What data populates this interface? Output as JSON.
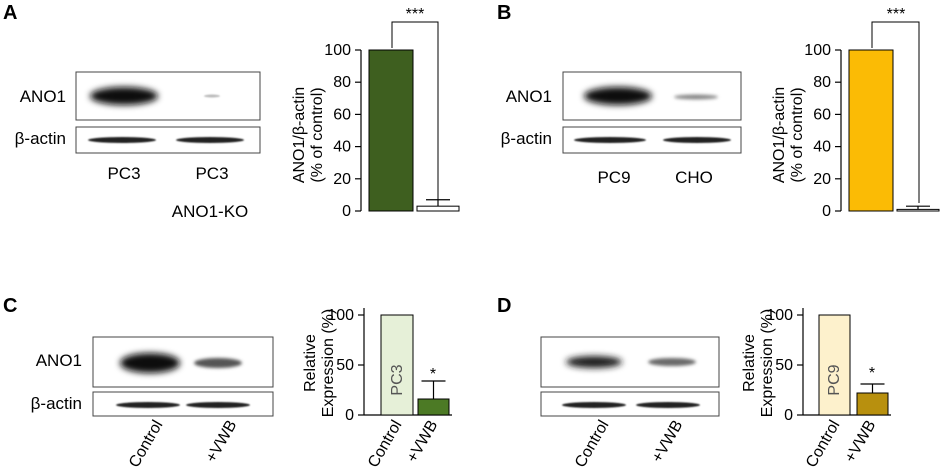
{
  "panels": {
    "A": {
      "letter": "A",
      "blot": {
        "rows": [
          "ANO1",
          "β-actin"
        ],
        "lanes": [
          "PC3",
          "PC3"
        ],
        "group_label": "ANO1-KO"
      },
      "sig": "***"
    },
    "B": {
      "letter": "B",
      "blot": {
        "rows": [
          "ANO1",
          "β-actin"
        ],
        "lanes": [
          "PC9",
          "CHO"
        ]
      },
      "sig": "***"
    },
    "C": {
      "letter": "C",
      "blot": {
        "rows": [
          "ANO1",
          "β-actin"
        ],
        "lanes": [
          "Control",
          "+VWB"
        ]
      },
      "bar_text": "PC3",
      "sig": "*"
    },
    "D": {
      "letter": "D",
      "blot": {
        "lanes": [
          "Control",
          "+VWB"
        ]
      },
      "bar_text": "PC9",
      "sig": "*"
    }
  },
  "chart_data": [
    {
      "panel": "A",
      "type": "bar",
      "categories": [
        "PC3",
        "ANO1-KO"
      ],
      "values": [
        100,
        3
      ],
      "errors": [
        0,
        4
      ],
      "ylabel": [
        "ANO1/β-actin",
        "(% of control)"
      ],
      "ylim": [
        0,
        100
      ],
      "yticks": [
        "0",
        "20",
        "40",
        "60",
        "80",
        "100"
      ],
      "colors": [
        "#3e5f1f",
        "#ffffff"
      ]
    },
    {
      "panel": "B",
      "type": "bar",
      "categories": [
        "PC9",
        "CHO"
      ],
      "values": [
        100,
        1
      ],
      "errors": [
        0,
        2
      ],
      "ylabel": [
        "ANO1/β-actin",
        "(% of control)"
      ],
      "ylim": [
        0,
        100
      ],
      "yticks": [
        "0",
        "20",
        "40",
        "60",
        "80",
        "100"
      ],
      "colors": [
        "#fbbb05",
        "#ffffff"
      ]
    },
    {
      "panel": "C",
      "type": "bar",
      "categories": [
        "Control",
        "+VWB"
      ],
      "values": [
        100,
        16
      ],
      "errors": [
        0,
        18
      ],
      "ylabel": [
        "Relative",
        "Expression (%)"
      ],
      "ylim": [
        0,
        100
      ],
      "yticks": [
        "0",
        "50",
        "100"
      ],
      "colors": [
        "#e6f0d8",
        "#4c7a25"
      ]
    },
    {
      "panel": "D",
      "type": "bar",
      "categories": [
        "Control",
        "+VWB"
      ],
      "values": [
        100,
        22
      ],
      "errors": [
        0,
        9
      ],
      "ylabel": [
        "Relative",
        "Expression (%)"
      ],
      "ylim": [
        0,
        100
      ],
      "yticks": [
        "0",
        "50",
        "100"
      ],
      "colors": [
        "#fdf1cc",
        "#b8900e"
      ]
    }
  ]
}
